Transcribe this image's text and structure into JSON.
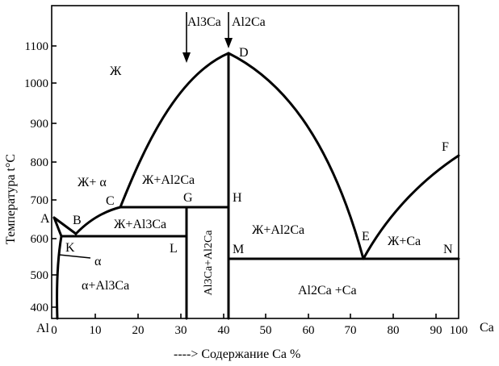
{
  "diagram": {
    "y_axis_title": "Температура t°C",
    "x_axis_caption": "---->  Содержание  Ca %",
    "x_start_label": "Al",
    "x_end_label": "Ca",
    "x_ticks": [
      "0",
      "10",
      "20",
      "30",
      "40",
      "50",
      "60",
      "70",
      "80",
      "90",
      "100"
    ],
    "y_ticks": [
      "400",
      "500",
      "600",
      "700",
      "800",
      "900",
      "1000",
      "1100"
    ],
    "top_markers": {
      "al3ca": "Al3Ca",
      "al2ca": "Al2Ca"
    },
    "points": {
      "A": "A",
      "B": "B",
      "C": "C",
      "D": "D",
      "E": "E",
      "F": "F",
      "G": "G",
      "H": "H",
      "K": "K",
      "L": "L",
      "M": "M",
      "N": "N"
    },
    "regions": {
      "liquid": "Ж",
      "liquid_alpha": "Ж+ α",
      "liquid_al2ca_left": "Ж+Al2Ca",
      "liquid_al3ca": "Ж+Al3Ca",
      "liquid_al2ca_right": "Ж+Al2Ca",
      "liquid_ca": "Ж+Ca",
      "alpha": "α",
      "alpha_al3ca": "α+Al3Ca",
      "al3ca_al2ca": "Al3Ca+Al2Ca",
      "al2ca_ca": "Al2Ca +Ca"
    }
  }
}
